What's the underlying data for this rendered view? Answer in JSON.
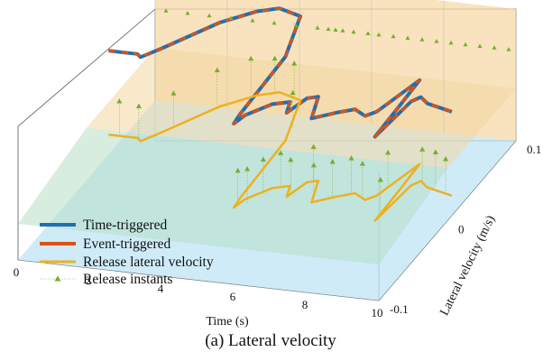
{
  "caption": "(a) Lateral velocity",
  "chart_data": {
    "type": "line",
    "projection": "3d",
    "xlabel": "Time (s)",
    "ylabel": "Lateral velocity (m/s)",
    "zlabel": "",
    "xlim": [
      0,
      10
    ],
    "ylim": [
      -0.1,
      0.1
    ],
    "x_ticks": [
      "0",
      "2",
      "4",
      "6",
      "8",
      "10"
    ],
    "y_ticks": [
      "-0.1",
      "0",
      "0.1"
    ],
    "grid": true,
    "legend_position": "bottom-left",
    "legend": [
      "Time-triggered",
      "Event-triggered",
      "Release lateral velocity",
      "Release instants"
    ],
    "series": [
      {
        "name": "Time-triggered",
        "color": "#1f6fb2",
        "x": [
          0,
          0.8,
          0.95,
          1.3,
          2.2,
          2.9,
          3.4,
          4.1,
          4.6,
          4.7,
          4.75,
          4.85,
          5.3,
          5.7,
          5.85,
          6.05,
          6.3,
          6.6,
          7.1,
          7.5,
          7.9,
          8.1,
          8.5,
          8.55,
          8.6,
          8.75,
          8.9,
          9.2,
          10
        ],
        "y": [
          0.02,
          0.02,
          0.018,
          0.026,
          0.049,
          0.06,
          0.064,
          0.06,
          0.03,
          -0.015,
          -0.022,
          -0.015,
          -0.005,
          -0.002,
          -0.01,
          0.002,
          0.004,
          -0.012,
          -0.006,
          -0.002,
          -0.006,
          -0.002,
          0.024,
          0.005,
          -0.02,
          0.008,
          0.012,
          0.008,
          0.004
        ]
      },
      {
        "name": "Event-triggered",
        "color": "#d95319",
        "x": [
          0,
          0.8,
          0.95,
          1.3,
          2.2,
          2.9,
          3.4,
          4.1,
          4.6,
          4.7,
          4.75,
          4.85,
          5.3,
          5.7,
          5.85,
          6.05,
          6.3,
          6.6,
          7.1,
          7.5,
          7.9,
          8.1,
          8.5,
          8.55,
          8.6,
          8.75,
          8.9,
          9.2,
          10
        ],
        "y": [
          0.02,
          0.02,
          0.018,
          0.026,
          0.049,
          0.06,
          0.064,
          0.06,
          0.03,
          -0.015,
          -0.022,
          -0.015,
          -0.005,
          -0.002,
          -0.01,
          0.002,
          0.004,
          -0.012,
          -0.006,
          -0.002,
          -0.006,
          -0.002,
          0.024,
          0.005,
          -0.02,
          0.008,
          0.012,
          0.008,
          0.004
        ]
      },
      {
        "name": "Release lateral velocity",
        "color": "#edb120",
        "x": [
          0,
          0.8,
          0.95,
          1.3,
          2.2,
          2.9,
          3.4,
          4.1,
          4.6,
          4.7,
          4.75,
          4.85,
          5.3,
          5.7,
          5.85,
          6.05,
          6.3,
          6.6,
          7.1,
          7.5,
          7.9,
          8.1,
          8.5,
          8.55,
          8.6,
          8.75,
          8.9,
          9.2,
          10
        ],
        "y": [
          0.02,
          0.02,
          0.018,
          0.026,
          0.049,
          0.06,
          0.064,
          0.06,
          0.03,
          -0.015,
          -0.022,
          -0.015,
          -0.005,
          -0.002,
          -0.01,
          0.002,
          0.004,
          -0.012,
          -0.006,
          -0.002,
          -0.006,
          -0.002,
          0.024,
          0.005,
          -0.02,
          0.008,
          0.012,
          0.008,
          0.004
        ]
      },
      {
        "name": "Release instants",
        "color": "#77ac30",
        "marker": "triangle",
        "x": [
          0.3,
          0.9,
          1.5,
          2.1,
          2.7,
          3.3,
          3.9,
          4.5,
          4.8,
          5.0,
          5.2,
          5.5,
          5.9,
          6.2,
          6.6,
          7.0,
          7.4,
          7.8,
          8.2,
          8.6,
          9.0,
          9.4,
          9.8
        ],
        "y": [
          0.02,
          0.018,
          0.03,
          0.05,
          0.061,
          0.063,
          0.061,
          0.04,
          -0.02,
          -0.018,
          -0.01,
          -0.004,
          -0.008,
          0.003,
          -0.01,
          -0.006,
          -0.002,
          -0.005,
          0.005,
          -0.015,
          0.01,
          0.009,
          0.005
        ]
      }
    ]
  }
}
